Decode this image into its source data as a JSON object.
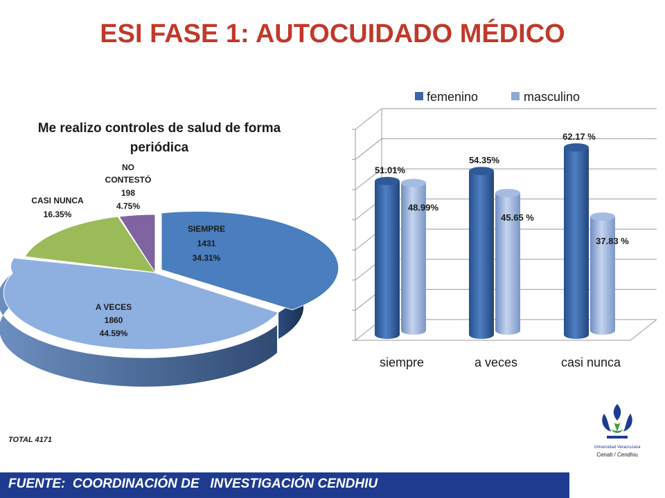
{
  "title": "ESI FASE 1: AUTOCUIDADO MÉDICO",
  "chart_data": [
    {
      "type": "pie",
      "title": "Me realizo controles de salud de forma periódica",
      "slices": [
        {
          "label": "SIEMPRE",
          "count": "1431",
          "percent_label": "34.31%",
          "value": 34.31,
          "color": "#4a7ebf"
        },
        {
          "label": "A VECES",
          "count": "1860",
          "percent_label": "44.59%",
          "value": 44.59,
          "color": "#8eb0e0"
        },
        {
          "label": "CASI NUNCA",
          "count": "",
          "percent_label": "16.35%",
          "value": 16.35,
          "color": "#9bbb59"
        },
        {
          "label": "NO CONTESTÓ",
          "count": "198",
          "percent_label": "4.75%",
          "value": 4.75,
          "color": "#8064a2"
        }
      ]
    },
    {
      "type": "bar",
      "categories": [
        "siempre",
        "a veces",
        "casi nunca"
      ],
      "series": [
        {
          "name": "femenino",
          "values": [
            51.01,
            54.35,
            62.17
          ],
          "labels": [
            "51.01%",
            "54.35%",
            "62.17 %"
          ],
          "color": "#3a66a8"
        },
        {
          "name": "masculino",
          "values": [
            48.99,
            45.65,
            37.83
          ],
          "labels": [
            "48.99%",
            "45.65 %",
            "37.83 %"
          ],
          "color": "#8fa9d6"
        }
      ],
      "ylim": [
        0,
        70
      ],
      "grid": true,
      "legend": "top"
    }
  ],
  "total_label": "TOTAL 4171",
  "footer": "FUENTE:  COORDINACIÓN DE   INVESTIGACIÓN CENDHIU",
  "logo": {
    "line1": "Universidad Veracruzana",
    "line2": "Cenati / Cendhiu"
  }
}
